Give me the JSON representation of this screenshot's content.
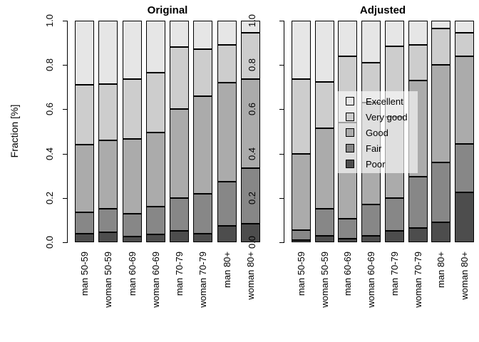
{
  "figure": {
    "ylabel": "Fraction [%]",
    "ytick_labels": [
      "0.0",
      "0.2",
      "0.4",
      "0.6",
      "0.8",
      "1.0"
    ]
  },
  "legend": {
    "entries": [
      {
        "label": "Excellent",
        "color": "#e6e6e6"
      },
      {
        "label": "Very good",
        "color": "#cdcdcd"
      },
      {
        "label": "Good",
        "color": "#ababab"
      },
      {
        "label": "Fair",
        "color": "#878787"
      },
      {
        "label": "Poor",
        "color": "#4d4d4d"
      }
    ]
  },
  "chart_data": {
    "type": "stacked-bar",
    "ylabel": "Fraction [%]",
    "ylim": [
      0.0,
      1.0
    ],
    "yticks": [
      0.0,
      0.2,
      0.4,
      0.6,
      0.8,
      1.0
    ],
    "grid": false,
    "legend_position": "center of right panel, semi-transparent background",
    "categories": [
      "man 50-59",
      "woman 50-59",
      "man 60-69",
      "woman 60-69",
      "man 70-79",
      "woman 70-79",
      "man 80+",
      "woman 80+"
    ],
    "stack_order_bottom_to_top": [
      "Poor",
      "Fair",
      "Good",
      "Very good",
      "Excellent"
    ],
    "colors": {
      "Poor": "#4d4d4d",
      "Fair": "#878787",
      "Good": "#ababab",
      "Very good": "#cdcdcd",
      "Excellent": "#e6e6e6"
    },
    "panels": [
      {
        "title": "Original",
        "series": [
          {
            "name": "Poor",
            "values": [
              0.04,
              0.045,
              0.025,
              0.035,
              0.05,
              0.04,
              0.075,
              0.085
            ]
          },
          {
            "name": "Fair",
            "values": [
              0.095,
              0.105,
              0.105,
              0.125,
              0.15,
              0.18,
              0.2,
              0.25
            ]
          },
          {
            "name": "Good",
            "values": [
              0.305,
              0.31,
              0.335,
              0.335,
              0.4,
              0.44,
              0.445,
              0.4
            ]
          },
          {
            "name": "Very good",
            "values": [
              0.27,
              0.255,
              0.27,
              0.27,
              0.28,
              0.21,
              0.17,
              0.21
            ]
          },
          {
            "name": "Excellent",
            "values": [
              0.29,
              0.285,
              0.265,
              0.235,
              0.12,
              0.13,
              0.11,
              0.055
            ]
          }
        ]
      },
      {
        "title": "Adjusted",
        "series": [
          {
            "name": "Poor",
            "values": [
              0.01,
              0.03,
              0.015,
              0.03,
              0.05,
              0.065,
              0.09,
              0.225
            ]
          },
          {
            "name": "Fair",
            "values": [
              0.045,
              0.12,
              0.09,
              0.14,
              0.15,
              0.23,
              0.27,
              0.22
            ]
          },
          {
            "name": "Good",
            "values": [
              0.345,
              0.365,
              0.435,
              0.46,
              0.365,
              0.435,
              0.44,
              0.395
            ]
          },
          {
            "name": "Very good",
            "values": [
              0.335,
              0.21,
              0.3,
              0.18,
              0.32,
              0.16,
              0.165,
              0.105
            ]
          },
          {
            "name": "Excellent",
            "values": [
              0.265,
              0.275,
              0.16,
              0.19,
              0.115,
              0.11,
              0.035,
              0.055
            ]
          }
        ]
      }
    ]
  }
}
